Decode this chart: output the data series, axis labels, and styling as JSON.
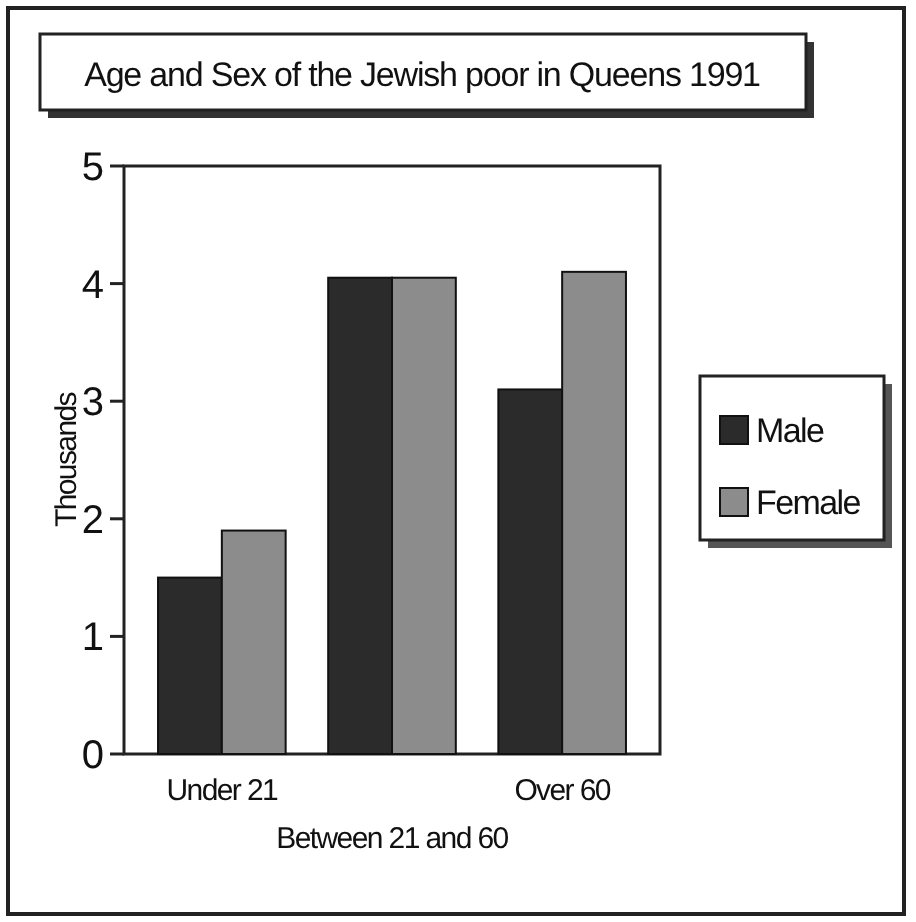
{
  "chart_data": {
    "type": "bar",
    "title": "Age and Sex of the Jewish poor in Queens 1991",
    "ylabel": "Thousands",
    "categories": [
      "Under 21",
      "Between 21 and 60",
      "Over 60"
    ],
    "series": [
      {
        "name": "Male",
        "color": "#2b2b2b",
        "values": [
          1.5,
          4.05,
          3.1
        ]
      },
      {
        "name": "Female",
        "color": "#8c8c8c",
        "values": [
          1.9,
          4.05,
          4.1
        ]
      }
    ],
    "ylim": [
      0,
      5
    ],
    "yticks": [
      0,
      1,
      2,
      3,
      4,
      5
    ],
    "legend": "right"
  }
}
